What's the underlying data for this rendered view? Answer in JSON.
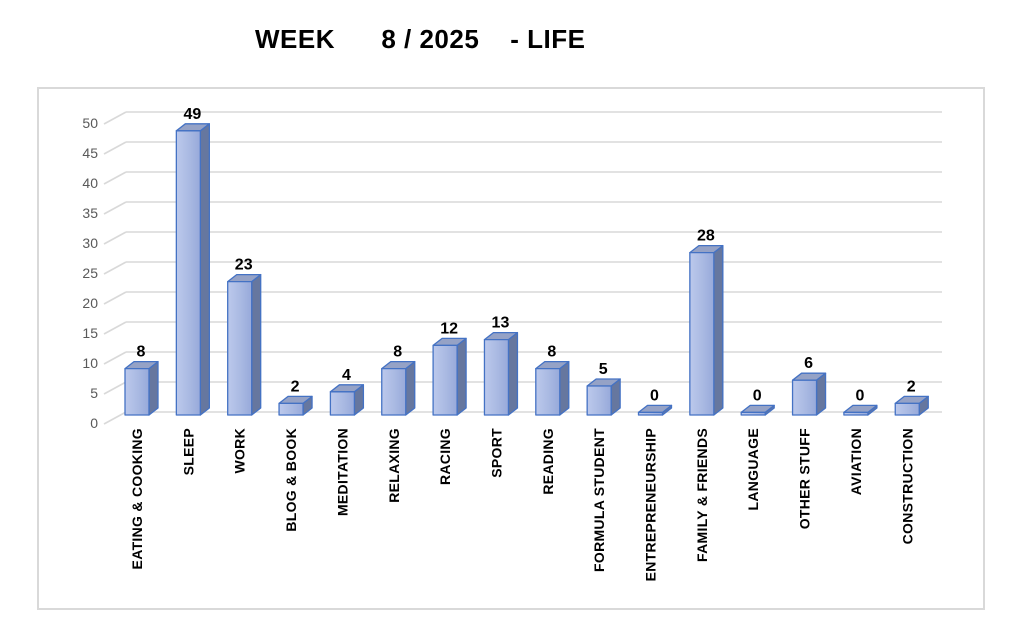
{
  "header": {
    "title": "WEEK      8 / 2025    - LIFE"
  },
  "chart_data": {
    "type": "bar",
    "style": "3d",
    "title": "WEEK      8 / 2025    - LIFE",
    "categories": [
      "EATING & COOKING",
      "SLEEP",
      "WORK",
      "BLOG & BOOK",
      "MEDITATION",
      "RELAXING",
      "RACING",
      "SPORT",
      "READING",
      "FORMULA STUDENT",
      "ENTREPRENEURSHIP",
      "FAMILY & FRIENDS",
      "LANGUAGE",
      "OTHER STUFF",
      "AVIATION",
      "CONSTRUCTION"
    ],
    "values": [
      8,
      49,
      23,
      2,
      4,
      8,
      12,
      13,
      8,
      5,
      0,
      28,
      0,
      6,
      0,
      2
    ],
    "data_labels_shown": true,
    "xlabel": "",
    "ylabel": "",
    "ylim": [
      0,
      50
    ],
    "ytick_step": 5,
    "grid": true,
    "legend": "none",
    "colors": {
      "bar_front": "#a9b9e2",
      "bar_front_light": "#bcc9ec",
      "bar_side": "#66779f",
      "bar_top": "#95a2c6",
      "bar_border": "#4472c4",
      "gridline": "#d9d9d9",
      "axis_text": "#595959",
      "value_label_text": "#000000",
      "category_label_text": "#000000",
      "chart_border": "#d9d9d9"
    }
  }
}
